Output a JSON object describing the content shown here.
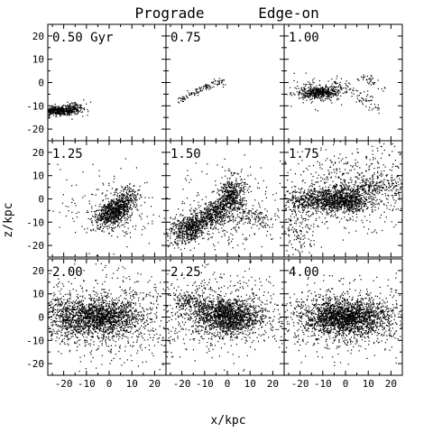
{
  "chart_data": {
    "type": "scatter",
    "title_left": "Prograde",
    "title_right": "Edge-on",
    "xlabel": "x/kpc",
    "ylabel": "z/kpc",
    "xlim": [
      -27,
      25
    ],
    "ylim": [
      -25,
      25
    ],
    "xticks": [
      -20,
      -10,
      0,
      10,
      20
    ],
    "yticks": [
      -20,
      -10,
      0,
      10,
      20
    ],
    "xtick_labels": [
      "-20",
      "-10",
      "0",
      "10",
      "20"
    ],
    "ytick_labels": [
      "-20",
      "-10",
      "0",
      "10",
      "20"
    ],
    "grid": false,
    "point_color": "#000000",
    "panels": [
      {
        "label": "0.50 Gyr",
        "blobs": [
          {
            "x": -22,
            "y": -12,
            "sx": 4.5,
            "sy": 0.9,
            "rot": 0,
            "n": 520
          },
          {
            "x": -16,
            "y": -10.5,
            "sx": 2.5,
            "sy": 1.2,
            "rot": 10,
            "n": 80
          }
        ],
        "streams": []
      },
      {
        "label": "0.75",
        "blobs": [],
        "streams": [
          {
            "x1": -22,
            "y1": -8,
            "x2": -2,
            "y2": 1,
            "width": 0.8,
            "n": 110,
            "bow": 1.0
          }
        ]
      },
      {
        "label": "1.00",
        "blobs": [
          {
            "x": -12,
            "y": -4,
            "sx": 4.0,
            "sy": 1.2,
            "rot": 0,
            "n": 420
          },
          {
            "x": -13,
            "y": -4,
            "sx": 8.0,
            "sy": 3.0,
            "rot": 0,
            "n": 120
          }
        ],
        "streams": [
          {
            "x1": -5,
            "y1": -1,
            "x2": 14,
            "y2": -12,
            "width": 1.5,
            "n": 90,
            "bow": 2.0
          },
          {
            "x1": 6,
            "y1": 2,
            "x2": 18,
            "y2": -3,
            "width": 1.2,
            "n": 40,
            "bow": 1.0
          }
        ]
      },
      {
        "label": "1.25",
        "blobs": [
          {
            "x": 1,
            "y": -6,
            "sx": 4.0,
            "sy": 2.6,
            "rot": 20,
            "n": 620
          },
          {
            "x": 6,
            "y": -2,
            "sx": 3.0,
            "sy": 1.5,
            "rot": 25,
            "n": 140
          },
          {
            "x": 0,
            "y": -4,
            "sx": 11.0,
            "sy": 9.0,
            "rot": 0,
            "n": 190
          }
        ],
        "streams": [
          {
            "x1": 2,
            "y1": -3,
            "x2": 12,
            "y2": 3,
            "width": 1.5,
            "n": 110,
            "bow": 2.5
          }
        ]
      },
      {
        "label": "1.50",
        "blobs": [
          {
            "x": -18,
            "y": -13,
            "sx": 4.5,
            "sy": 3.0,
            "rot": 20,
            "n": 460
          },
          {
            "x": 2,
            "y": 2,
            "sx": 2.8,
            "sy": 4.0,
            "rot": 0,
            "n": 380
          },
          {
            "x": -6,
            "y": -7,
            "sx": 4.0,
            "sy": 2.5,
            "rot": 30,
            "n": 260
          },
          {
            "x": 0,
            "y": -5,
            "sx": 12.0,
            "sy": 9.0,
            "rot": 0,
            "n": 300
          }
        ],
        "streams": [
          {
            "x1": -18,
            "y1": -13,
            "x2": 2,
            "y2": 1,
            "width": 2.0,
            "n": 300,
            "bow": 0
          },
          {
            "x1": 4,
            "y1": -8,
            "x2": 18,
            "y2": -10,
            "width": 2.5,
            "n": 120,
            "bow": 1.5
          }
        ]
      },
      {
        "label": "1.75",
        "blobs": [
          {
            "x": -10,
            "y": 0,
            "sx": 9.0,
            "sy": 2.6,
            "rot": 0,
            "n": 780
          },
          {
            "x": 0,
            "y": -2,
            "sx": 5.0,
            "sy": 2.2,
            "rot": 0,
            "n": 320
          },
          {
            "x": 5,
            "y": 5,
            "sx": 15.0,
            "sy": 8.0,
            "rot": 0,
            "n": 700
          },
          {
            "x": -20,
            "y": -12,
            "sx": 4.0,
            "sy": 6.0,
            "rot": 0,
            "n": 160
          }
        ],
        "streams": [
          {
            "x1": -4,
            "y1": 2,
            "x2": 22,
            "y2": 7,
            "width": 2.0,
            "n": 220,
            "bow": 0
          }
        ]
      },
      {
        "label": "2.00",
        "blobs": [
          {
            "x": -4,
            "y": 0,
            "sx": 9.0,
            "sy": 3.5,
            "rot": 0,
            "n": 1300
          },
          {
            "x": -20,
            "y": 1,
            "sx": 4.0,
            "sy": 6.0,
            "rot": 0,
            "n": 300
          },
          {
            "x": 0,
            "y": 0,
            "sx": 15.0,
            "sy": 9.0,
            "rot": 0,
            "n": 800
          }
        ],
        "streams": []
      },
      {
        "label": "2.25",
        "blobs": [
          {
            "x": 0,
            "y": 0,
            "sx": 7.0,
            "sy": 3.8,
            "rot": 0,
            "n": 1150
          },
          {
            "x": -3,
            "y": 2,
            "sx": 16.0,
            "sy": 8.0,
            "rot": 0,
            "n": 800
          }
        ],
        "streams": [
          {
            "x1": -22,
            "y1": 8,
            "x2": 0,
            "y2": 2,
            "width": 2.0,
            "n": 240,
            "bow": 0
          }
        ]
      },
      {
        "label": "4.00",
        "blobs": [
          {
            "x": 0,
            "y": 0,
            "sx": 9.0,
            "sy": 3.2,
            "rot": 0,
            "n": 1500
          },
          {
            "x": 0,
            "y": 0,
            "sx": 15.0,
            "sy": 7.0,
            "rot": 0,
            "n": 1000
          }
        ],
        "streams": []
      }
    ]
  }
}
